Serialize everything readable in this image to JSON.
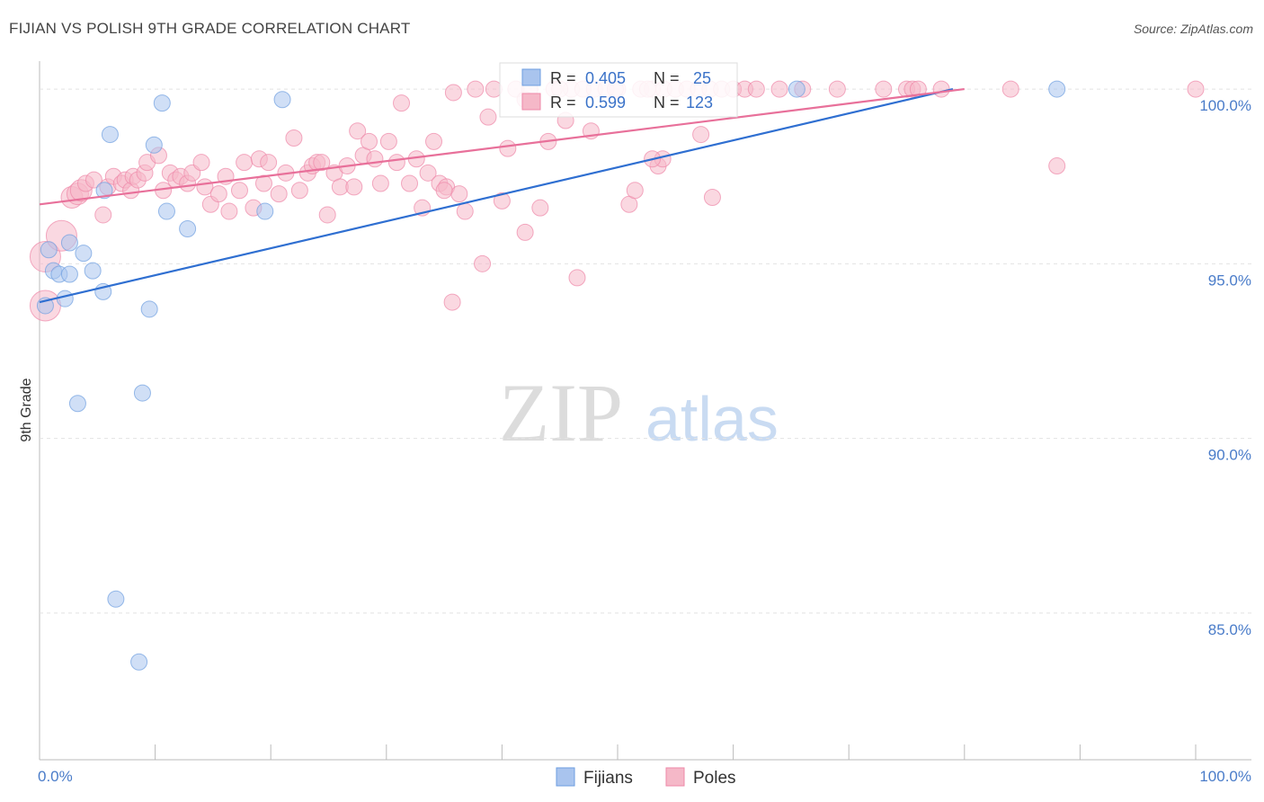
{
  "title": "FIJIAN VS POLISH 9TH GRADE CORRELATION CHART",
  "source": "Source: ZipAtlas.com",
  "watermark": {
    "zip": "ZIP",
    "atlas": "atlas"
  },
  "legend_box": [
    {
      "r_label": "R =",
      "r_value": "0.405",
      "n_label": "N =",
      "n_value": "25",
      "color": "#a9c4ee"
    },
    {
      "r_label": "R =",
      "r_value": "0.599",
      "n_label": "N =",
      "n_value": "123",
      "color": "#f5b8c8"
    }
  ],
  "chart_data": {
    "type": "scatter",
    "title": "FIJIAN VS POLISH 9TH GRADE CORRELATION CHART",
    "xlabel": "",
    "ylabel": "9th Grade",
    "xlim": [
      0,
      100
    ],
    "ylim": [
      80.8,
      100.8
    ],
    "x_tick_labels": [
      "0.0%",
      "100.0%"
    ],
    "y_ticks": [
      {
        "value": 100,
        "label": "100.0%"
      },
      {
        "value": 95,
        "label": "95.0%"
      },
      {
        "value": 90,
        "label": "90.0%"
      },
      {
        "value": 85,
        "label": "85.0%"
      }
    ],
    "series": [
      {
        "name": "Fijians",
        "color": "#6d9ee0",
        "fill": "#a9c4ee",
        "trend": {
          "x0": 0,
          "y0": 93.9,
          "x1": 79,
          "y1": 100
        },
        "points": [
          [
            0.5,
            93.8
          ],
          [
            0.8,
            95.4
          ],
          [
            1.2,
            94.8
          ],
          [
            1.7,
            94.7
          ],
          [
            2.2,
            94.0
          ],
          [
            2.6,
            95.6
          ],
          [
            2.6,
            94.7
          ],
          [
            3.8,
            95.3
          ],
          [
            4.6,
            94.8
          ],
          [
            5.5,
            94.2
          ],
          [
            5.6,
            97.1
          ],
          [
            6.1,
            98.7
          ],
          [
            6.6,
            85.4
          ],
          [
            8.6,
            83.6
          ],
          [
            8.9,
            91.3
          ],
          [
            9.5,
            93.7
          ],
          [
            9.9,
            98.4
          ],
          [
            10.6,
            99.6
          ],
          [
            11.0,
            96.5
          ],
          [
            12.8,
            96.0
          ],
          [
            19.5,
            96.5
          ],
          [
            3.3,
            91.0
          ],
          [
            21.0,
            99.7
          ],
          [
            65.5,
            100
          ],
          [
            88.0,
            100
          ]
        ]
      },
      {
        "name": "Poles",
        "color": "#ee88a8",
        "fill": "#f5b8c8",
        "trend": {
          "x0": 0,
          "y0": 96.7,
          "x1": 80,
          "y1": 100
        },
        "points": [
          [
            0.5,
            93.8
          ],
          [
            0.5,
            95.2
          ],
          [
            1.9,
            95.8
          ],
          [
            2.8,
            96.9
          ],
          [
            3.3,
            97.0
          ],
          [
            3.6,
            97.1
          ],
          [
            4.0,
            97.3
          ],
          [
            4.7,
            97.4
          ],
          [
            5.5,
            96.4
          ],
          [
            5.9,
            97.2
          ],
          [
            6.4,
            97.5
          ],
          [
            7.1,
            97.3
          ],
          [
            7.4,
            97.4
          ],
          [
            7.9,
            97.1
          ],
          [
            8.1,
            97.5
          ],
          [
            8.5,
            97.4
          ],
          [
            9.1,
            97.6
          ],
          [
            9.3,
            97.9
          ],
          [
            10.3,
            98.1
          ],
          [
            10.7,
            97.1
          ],
          [
            11.3,
            97.6
          ],
          [
            11.8,
            97.4
          ],
          [
            12.2,
            97.5
          ],
          [
            12.8,
            97.3
          ],
          [
            13.2,
            97.6
          ],
          [
            14.0,
            97.9
          ],
          [
            14.3,
            97.2
          ],
          [
            14.8,
            96.7
          ],
          [
            15.5,
            97.0
          ],
          [
            16.1,
            97.5
          ],
          [
            16.4,
            96.5
          ],
          [
            17.3,
            97.1
          ],
          [
            17.7,
            97.9
          ],
          [
            18.5,
            96.6
          ],
          [
            19.0,
            98.0
          ],
          [
            19.4,
            97.3
          ],
          [
            19.8,
            97.9
          ],
          [
            20.7,
            97.0
          ],
          [
            21.3,
            97.6
          ],
          [
            22.0,
            98.6
          ],
          [
            22.5,
            97.1
          ],
          [
            23.2,
            97.6
          ],
          [
            23.6,
            97.8
          ],
          [
            24.0,
            97.9
          ],
          [
            24.4,
            97.9
          ],
          [
            24.9,
            96.4
          ],
          [
            25.5,
            97.6
          ],
          [
            26.0,
            97.2
          ],
          [
            26.6,
            97.8
          ],
          [
            27.2,
            97.2
          ],
          [
            27.5,
            98.8
          ],
          [
            28.0,
            98.1
          ],
          [
            28.5,
            98.5
          ],
          [
            29.0,
            98.0
          ],
          [
            29.5,
            97.3
          ],
          [
            30.2,
            98.5
          ],
          [
            30.9,
            97.9
          ],
          [
            31.3,
            99.6
          ],
          [
            32.0,
            97.3
          ],
          [
            32.6,
            98.0
          ],
          [
            33.1,
            96.6
          ],
          [
            33.6,
            97.6
          ],
          [
            34.1,
            98.5
          ],
          [
            34.6,
            97.3
          ],
          [
            35.2,
            97.2
          ],
          [
            35.8,
            99.9
          ],
          [
            36.3,
            97.0
          ],
          [
            36.8,
            96.5
          ],
          [
            37.7,
            100
          ],
          [
            38.3,
            95.0
          ],
          [
            38.8,
            99.2
          ],
          [
            39.3,
            100
          ],
          [
            40.0,
            96.8
          ],
          [
            40.5,
            98.3
          ],
          [
            41.2,
            100
          ],
          [
            42.0,
            95.9
          ],
          [
            42.4,
            100
          ],
          [
            43.3,
            96.6
          ],
          [
            44.5,
            100
          ],
          [
            46.0,
            100
          ],
          [
            46.5,
            94.6
          ],
          [
            47.0,
            100
          ],
          [
            48.0,
            100
          ],
          [
            49.0,
            100
          ],
          [
            50.0,
            100
          ],
          [
            51.0,
            96.7
          ],
          [
            51.5,
            97.1
          ],
          [
            52.0,
            100
          ],
          [
            53.0,
            100
          ],
          [
            54.0,
            100
          ],
          [
            55.0,
            100
          ],
          [
            56.0,
            100
          ],
          [
            57.0,
            100
          ],
          [
            58.0,
            100
          ],
          [
            59.0,
            100
          ],
          [
            60.0,
            100
          ],
          [
            61.0,
            100
          ],
          [
            62.0,
            100
          ],
          [
            64.0,
            100
          ],
          [
            66.0,
            100
          ],
          [
            69.0,
            100
          ],
          [
            73.0,
            100
          ],
          [
            75.0,
            100
          ],
          [
            75.5,
            100
          ],
          [
            76.0,
            100
          ],
          [
            78.0,
            100
          ],
          [
            84.0,
            100
          ],
          [
            88.0,
            97.8
          ],
          [
            100.0,
            100
          ],
          [
            35.0,
            97.1
          ],
          [
            35.7,
            93.9
          ],
          [
            53.5,
            97.8
          ],
          [
            53.9,
            98.0
          ],
          [
            58.2,
            96.9
          ],
          [
            57.2,
            98.7
          ],
          [
            53.0,
            98.0
          ],
          [
            44.0,
            98.5
          ],
          [
            45.0,
            100
          ],
          [
            47.7,
            98.8
          ],
          [
            45.5,
            99.1
          ],
          [
            42.0,
            99.7
          ],
          [
            49.8,
            100
          ],
          [
            52.6,
            100
          ]
        ]
      }
    ]
  }
}
